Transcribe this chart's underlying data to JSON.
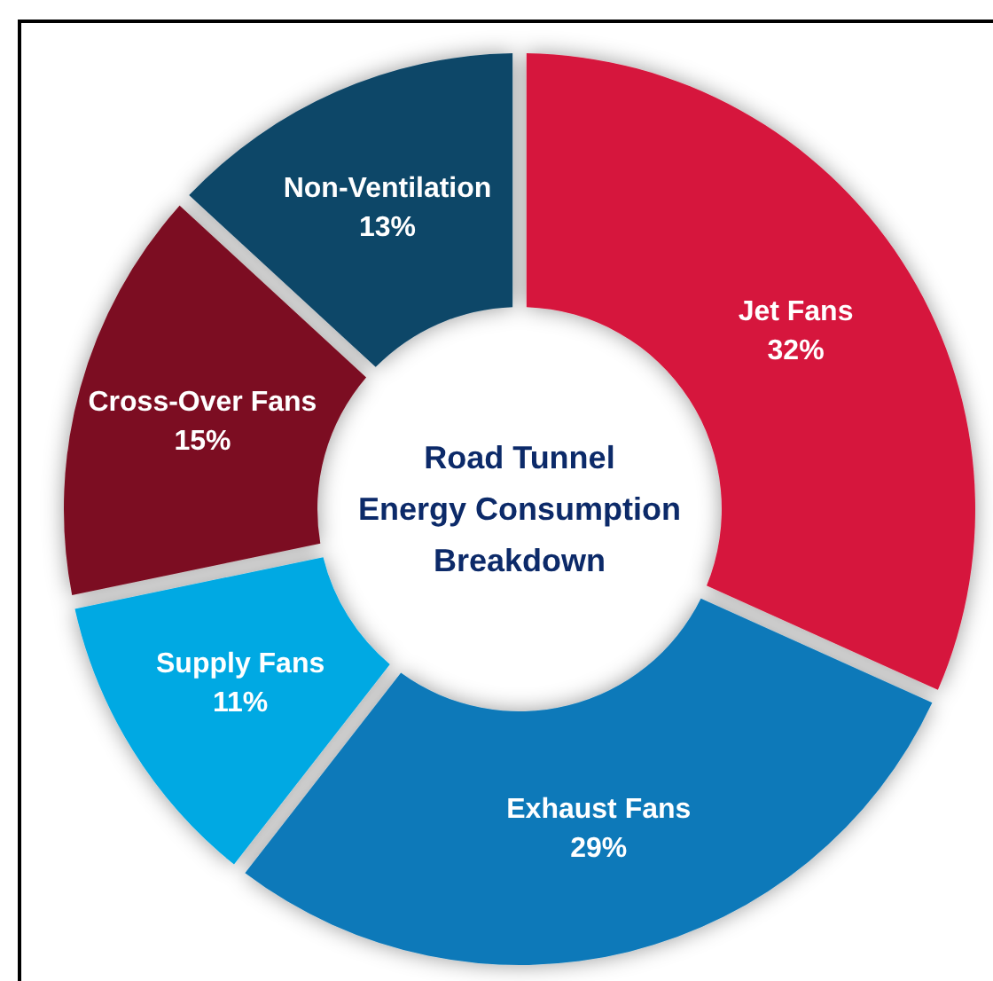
{
  "chart_data": {
    "type": "donut",
    "title": "Road Tunnel\nEnergy Consumption\nBreakdown",
    "categories": [
      "Jet Fans",
      "Exhaust Fans",
      "Supply Fans",
      "Cross-Over Fans",
      "Non-Ventilation"
    ],
    "values": [
      32,
      29,
      11,
      15,
      13
    ],
    "colors": [
      "#d6173c",
      "#0b79b9",
      "#06a9e3",
      "#7b0d20",
      "#0b4668"
    ],
    "value_labels": [
      "32%",
      "29%",
      "11%",
      "15%",
      "13%"
    ]
  }
}
